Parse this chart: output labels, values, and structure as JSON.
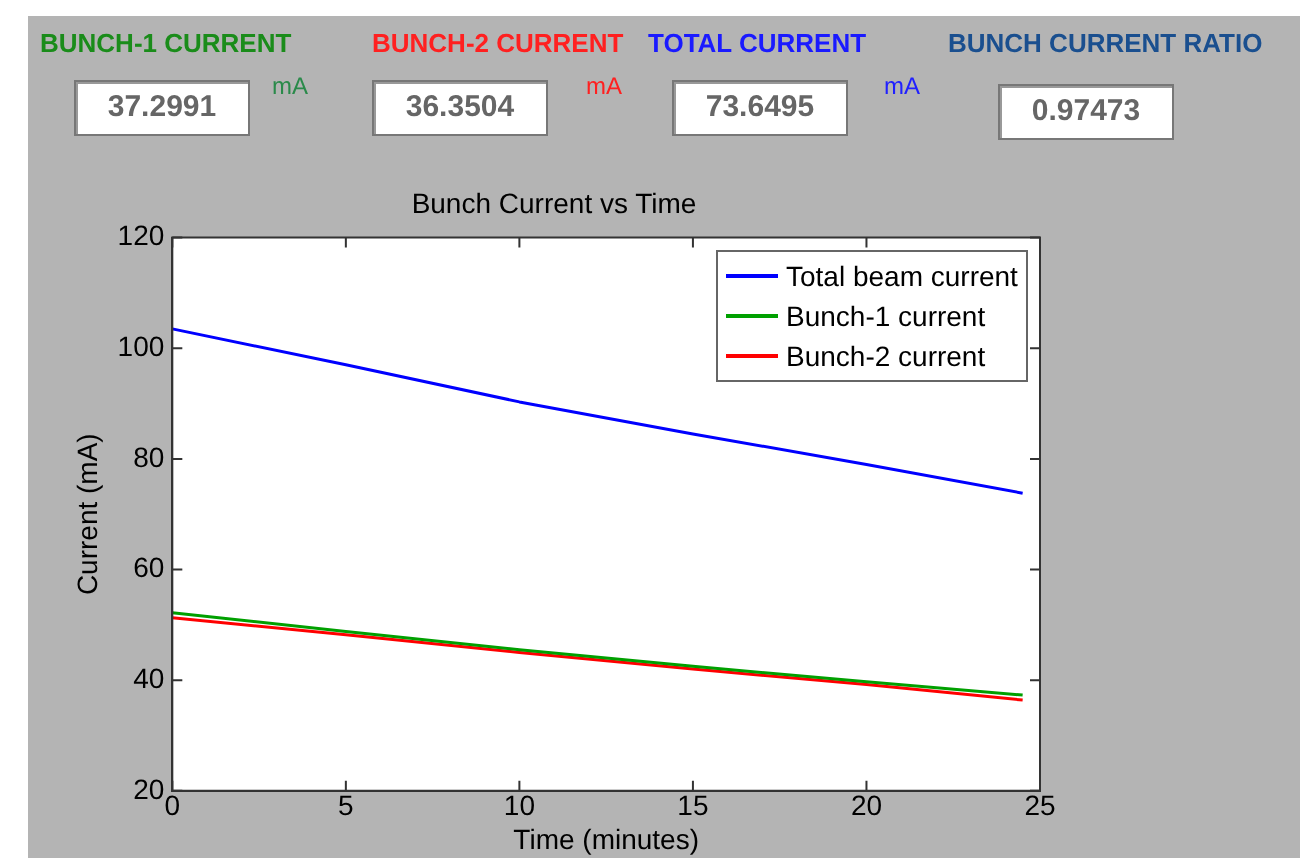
{
  "chart_data": {
    "type": "line",
    "title": "Bunch Current vs Time",
    "xlabel": "Time (minutes)",
    "ylabel": "Current (mA)",
    "xlim": [
      0,
      25
    ],
    "xticks": [
      0,
      5,
      10,
      15,
      20,
      25
    ],
    "ylim": [
      20,
      120
    ],
    "yticks": [
      20,
      40,
      60,
      80,
      100,
      120
    ],
    "x": [
      0,
      5,
      10,
      15,
      20,
      24.5
    ],
    "series": [
      {
        "name": "Total beam current",
        "color": "#0000ff",
        "values": [
          103.5,
          97,
          90.3,
          84.5,
          79,
          73.8
        ]
      },
      {
        "name": "Bunch-1 current",
        "color": "#00a000",
        "values": [
          52.2,
          48.8,
          45.5,
          42.5,
          39.7,
          37.3
        ]
      },
      {
        "name": "Bunch-2 current",
        "color": "#ff0000",
        "values": [
          51.3,
          48.2,
          45,
          42,
          39.2,
          36.4
        ]
      }
    ],
    "legend": "top right",
    "grid": false,
    "marker": "none",
    "line_style": "solid",
    "annotations": [
      "BUNCH-1 CURRENT",
      "BUNCH-2 CURRENT",
      "TOTAL CURRENT",
      "BUNCH CURRENT RATIO",
      "37.2991",
      "mA",
      "36.3504",
      "mA",
      "73.6495",
      "mA",
      "0.97473"
    ]
  }
}
